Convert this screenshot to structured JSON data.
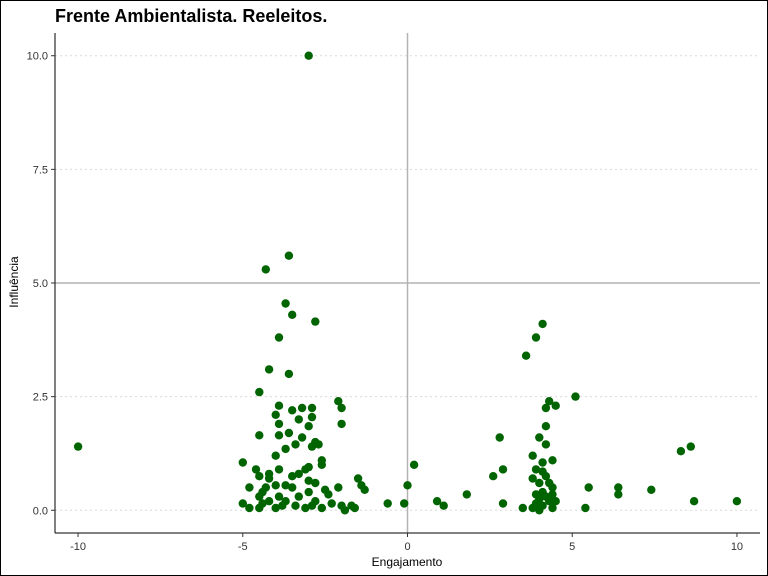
{
  "chart_data": {
    "type": "scatter",
    "title": "Frente Ambientalista. Reeleitos.",
    "xlabel": "Engajamento",
    "ylabel": "Influência",
    "xlim": [
      -10.7,
      10.7
    ],
    "ylim": [
      -0.5,
      10.5
    ],
    "x_ticks": [
      -10,
      -5,
      0,
      5,
      10
    ],
    "y_ticks": [
      0.0,
      2.5,
      5.0,
      7.5,
      10.0
    ],
    "x_tick_labels": [
      "-10",
      "-5",
      "0",
      "5",
      "10"
    ],
    "y_tick_labels": [
      "0.0",
      "2.5",
      "5.0",
      "7.5",
      "10.0"
    ],
    "grid": "horizontal-dotted",
    "reference_lines": {
      "x": 0,
      "y": 5
    },
    "point_color": "#006400",
    "reference_line_color": "#b3b3b3",
    "grid_color": "#d9d9d9",
    "points": [
      [
        -3.0,
        10.0
      ],
      [
        -10.0,
        1.4
      ],
      [
        -3.6,
        5.6
      ],
      [
        -4.3,
        5.3
      ],
      [
        -3.7,
        4.55
      ],
      [
        -3.5,
        4.3
      ],
      [
        -2.8,
        4.15
      ],
      [
        -3.9,
        3.8
      ],
      [
        -4.2,
        3.1
      ],
      [
        -3.6,
        3.0
      ],
      [
        -4.5,
        2.6
      ],
      [
        -3.9,
        2.3
      ],
      [
        -3.5,
        2.2
      ],
      [
        -3.2,
        2.25
      ],
      [
        -2.9,
        2.25
      ],
      [
        -2.1,
        2.4
      ],
      [
        -2.0,
        2.25
      ],
      [
        -4.0,
        2.1
      ],
      [
        -3.3,
        2.0
      ],
      [
        -2.9,
        2.05
      ],
      [
        -2.0,
        1.9
      ],
      [
        -3.9,
        1.9
      ],
      [
        -3.0,
        1.85
      ],
      [
        -3.6,
        1.7
      ],
      [
        -3.9,
        1.65
      ],
      [
        -4.5,
        1.65
      ],
      [
        -3.2,
        1.6
      ],
      [
        -2.8,
        1.5
      ],
      [
        -3.4,
        1.45
      ],
      [
        -2.7,
        1.45
      ],
      [
        -2.9,
        1.4
      ],
      [
        -3.7,
        1.35
      ],
      [
        -4.0,
        1.2
      ],
      [
        -2.6,
        1.1
      ],
      [
        -5.0,
        1.05
      ],
      [
        -2.6,
        1.0
      ],
      [
        -3.0,
        0.95
      ],
      [
        -4.6,
        0.9
      ],
      [
        -3.9,
        0.9
      ],
      [
        -3.1,
        0.9
      ],
      [
        -4.2,
        0.8
      ],
      [
        -3.3,
        0.8
      ],
      [
        -4.5,
        0.75
      ],
      [
        -3.5,
        0.75
      ],
      [
        -4.2,
        0.7
      ],
      [
        -1.5,
        0.7
      ],
      [
        -3.0,
        0.65
      ],
      [
        -2.8,
        0.6
      ],
      [
        -1.4,
        0.55
      ],
      [
        -4.0,
        0.55
      ],
      [
        -3.7,
        0.55
      ],
      [
        -2.1,
        0.5
      ],
      [
        -3.5,
        0.5
      ],
      [
        -4.8,
        0.5
      ],
      [
        -4.3,
        0.5
      ],
      [
        -2.5,
        0.45
      ],
      [
        -1.3,
        0.45
      ],
      [
        -4.4,
        0.4
      ],
      [
        -3.0,
        0.4
      ],
      [
        -2.4,
        0.35
      ],
      [
        -3.9,
        0.3
      ],
      [
        -3.3,
        0.3
      ],
      [
        -4.5,
        0.3
      ],
      [
        -4.2,
        0.2
      ],
      [
        -3.7,
        0.2
      ],
      [
        -2.8,
        0.2
      ],
      [
        -2.3,
        0.15
      ],
      [
        -5.0,
        0.15
      ],
      [
        -4.4,
        0.15
      ],
      [
        -3.8,
        0.1
      ],
      [
        -3.4,
        0.1
      ],
      [
        -2.9,
        0.1
      ],
      [
        -2.0,
        0.1
      ],
      [
        -1.7,
        0.1
      ],
      [
        -1.6,
        0.05
      ],
      [
        -3.1,
        0.05
      ],
      [
        -4.5,
        0.05
      ],
      [
        -4.8,
        0.05
      ],
      [
        -2.6,
        0.05
      ],
      [
        -1.9,
        0.0
      ],
      [
        -4.0,
        0.05
      ],
      [
        -0.6,
        0.15
      ],
      [
        -0.1,
        0.15
      ],
      [
        0.0,
        0.55
      ],
      [
        0.2,
        1.0
      ],
      [
        0.9,
        0.2
      ],
      [
        1.1,
        0.1
      ],
      [
        1.8,
        0.35
      ],
      [
        2.6,
        0.75
      ],
      [
        2.8,
        1.6
      ],
      [
        2.9,
        0.9
      ],
      [
        2.9,
        0.15
      ],
      [
        4.1,
        4.1
      ],
      [
        3.9,
        3.8
      ],
      [
        3.6,
        3.4
      ],
      [
        5.1,
        2.5
      ],
      [
        4.3,
        2.4
      ],
      [
        4.5,
        2.3
      ],
      [
        4.2,
        2.25
      ],
      [
        4.2,
        1.85
      ],
      [
        4.0,
        1.6
      ],
      [
        4.2,
        1.45
      ],
      [
        3.8,
        1.2
      ],
      [
        4.4,
        1.1
      ],
      [
        4.1,
        1.05
      ],
      [
        3.9,
        0.9
      ],
      [
        4.1,
        0.85
      ],
      [
        4.2,
        0.75
      ],
      [
        3.8,
        0.7
      ],
      [
        4.3,
        0.6
      ],
      [
        4.0,
        0.6
      ],
      [
        4.4,
        0.5
      ],
      [
        4.1,
        0.4
      ],
      [
        4.4,
        0.35
      ],
      [
        3.9,
        0.35
      ],
      [
        4.2,
        0.3
      ],
      [
        4.0,
        0.25
      ],
      [
        4.3,
        0.2
      ],
      [
        4.5,
        0.2
      ],
      [
        3.9,
        0.15
      ],
      [
        4.1,
        0.1
      ],
      [
        3.8,
        0.05
      ],
      [
        4.4,
        0.05
      ],
      [
        3.5,
        0.05
      ],
      [
        4.0,
        0.0
      ],
      [
        5.5,
        0.5
      ],
      [
        5.4,
        0.05
      ],
      [
        6.4,
        0.5
      ],
      [
        6.4,
        0.35
      ],
      [
        7.4,
        0.45
      ],
      [
        8.3,
        1.3
      ],
      [
        8.6,
        1.4
      ],
      [
        8.7,
        0.2
      ],
      [
        10.0,
        0.2
      ]
    ]
  }
}
